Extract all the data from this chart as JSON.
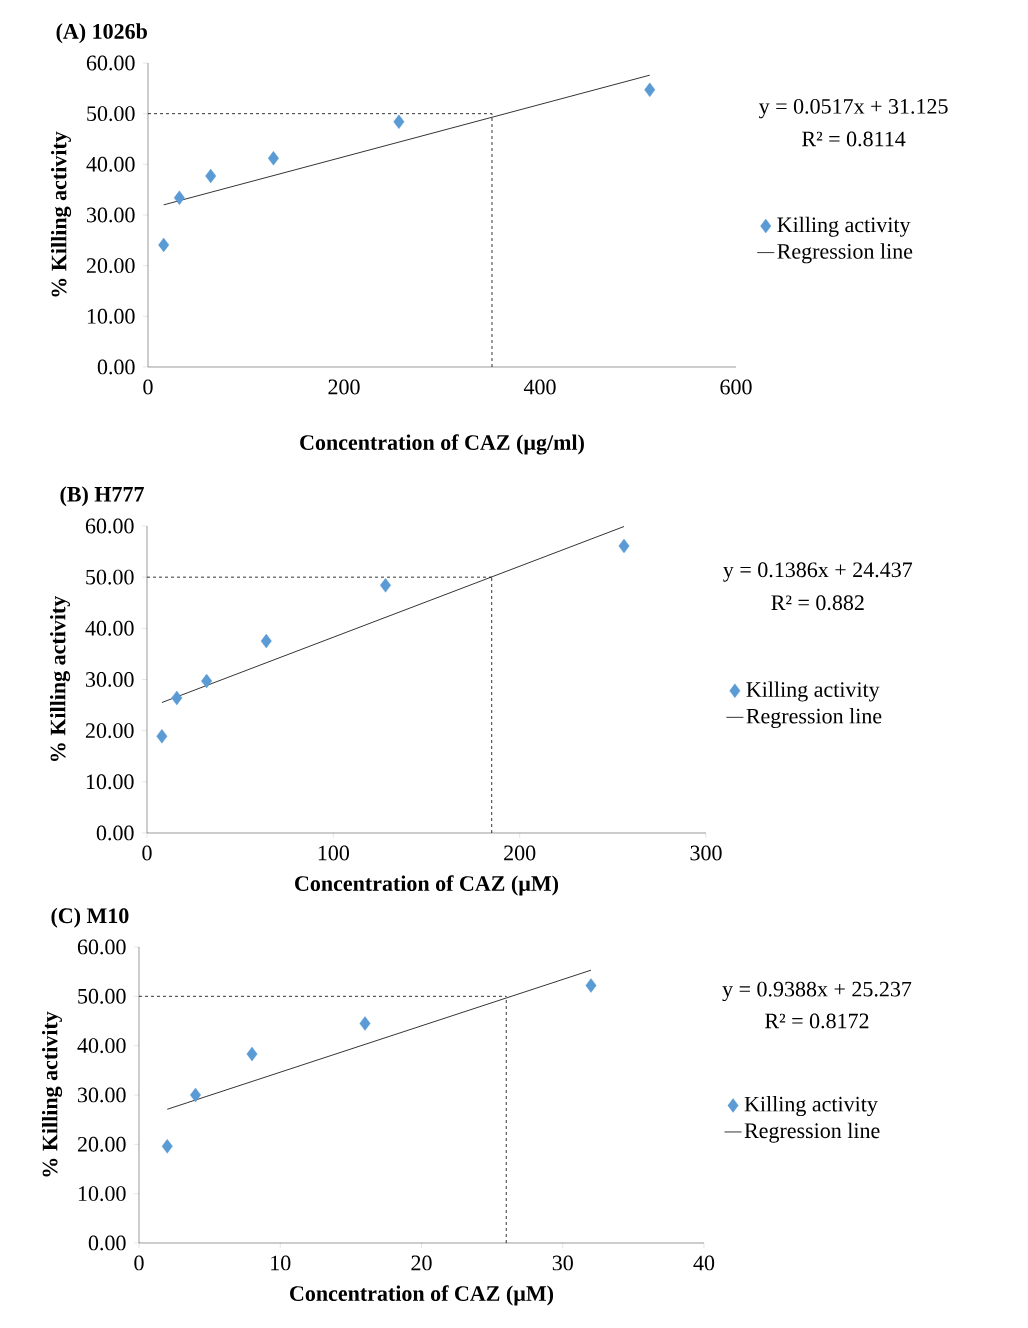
{
  "chart_data": [
    {
      "type": "scatter",
      "title": "(A) 1026b",
      "xlabel": "Concentration of  CAZ (µg/ml)",
      "ylabel": "% Killing activity",
      "xlim": [
        0,
        600
      ],
      "xticks": [
        0,
        200,
        400,
        600
      ],
      "ylim": [
        0,
        60
      ],
      "yticks": [
        {
          "value": 0,
          "label": "0.00"
        },
        {
          "value": 10,
          "label": "10.00"
        },
        {
          "value": 20,
          "label": "20.00"
        },
        {
          "value": 30,
          "label": "30.00"
        },
        {
          "value": 40,
          "label": "40.00"
        },
        {
          "value": 50,
          "label": "50.00"
        },
        {
          "value": 60,
          "label": "60.00"
        }
      ],
      "legend": "right",
      "grid": false,
      "series": [
        {
          "name": "Killing activity",
          "marker": "diamond",
          "color": "#5b9bd5",
          "x": [
            16,
            32,
            64,
            128,
            256,
            512
          ],
          "values": [
            24.1,
            33.4,
            37.7,
            41.2,
            48.4,
            54.7
          ]
        },
        {
          "name": "Regression line",
          "type": "line",
          "marker": "none",
          "color": "#000000",
          "line_style": "solid",
          "x": [
            16,
            512
          ],
          "values": [
            32.0,
            57.6
          ]
        }
      ],
      "ref_lines": [
        {
          "axis": "y",
          "value": 50,
          "color": "#000000",
          "line_style": "dashed"
        },
        {
          "axis": "x",
          "value": 351,
          "color": "#000000",
          "line_style": "dashed"
        }
      ],
      "annotations": [
        "y = 0.0517x + 31.125",
        "R² = 0.8114"
      ]
    },
    {
      "type": "scatter",
      "title": "(B) H777",
      "xlabel": "Concentration of CAZ (µM)",
      "ylabel": "% Killing activity",
      "xlim": [
        0,
        300
      ],
      "xticks": [
        0,
        100,
        200,
        300
      ],
      "ylim": [
        0,
        60
      ],
      "yticks": [
        {
          "value": 0,
          "label": "0.00"
        },
        {
          "value": 10,
          "label": "10.00"
        },
        {
          "value": 20,
          "label": "20.00"
        },
        {
          "value": 30,
          "label": "30.00"
        },
        {
          "value": 40,
          "label": "40.00"
        },
        {
          "value": 50,
          "label": "50.00"
        },
        {
          "value": 60,
          "label": "60.00"
        }
      ],
      "legend": "right",
      "grid": false,
      "series": [
        {
          "name": "Killing activity",
          "marker": "diamond",
          "color": "#5b9bd5",
          "x": [
            8,
            16,
            32,
            64,
            128,
            256
          ],
          "values": [
            18.9,
            26.4,
            29.7,
            37.5,
            48.4,
            56.1
          ]
        },
        {
          "name": "Regression line",
          "type": "line",
          "marker": "none",
          "color": "#000000",
          "line_style": "solid",
          "x": [
            8,
            256
          ],
          "values": [
            25.5,
            59.9
          ]
        }
      ],
      "ref_lines": [
        {
          "axis": "y",
          "value": 50,
          "color": "#000000",
          "line_style": "dashed"
        },
        {
          "axis": "x",
          "value": 185,
          "color": "#000000",
          "line_style": "dashed"
        }
      ],
      "annotations": [
        "y = 0.1386x + 24.437",
        "R² = 0.882"
      ]
    },
    {
      "type": "scatter",
      "title": "(C) M10",
      "xlabel": "Concentration of CAZ (µM)",
      "ylabel": "% Killing activity",
      "xlim": [
        0,
        40
      ],
      "xticks": [
        0,
        10,
        20,
        30,
        40
      ],
      "ylim": [
        0,
        60
      ],
      "yticks": [
        {
          "value": 0,
          "label": "0.00"
        },
        {
          "value": 10,
          "label": "10.00"
        },
        {
          "value": 20,
          "label": "20.00"
        },
        {
          "value": 30,
          "label": "30.00"
        },
        {
          "value": 40,
          "label": "40.00"
        },
        {
          "value": 50,
          "label": "50.00"
        },
        {
          "value": 60,
          "label": "60.00"
        }
      ],
      "legend": "right",
      "grid": false,
      "series": [
        {
          "name": "Killing activity",
          "marker": "diamond",
          "color": "#5b9bd5",
          "x": [
            2,
            4,
            8,
            16,
            32
          ],
          "values": [
            19.6,
            30.0,
            38.3,
            44.5,
            52.2
          ]
        },
        {
          "name": "Regression line",
          "type": "line",
          "marker": "none",
          "color": "#000000",
          "line_style": "solid",
          "x": [
            2,
            32
          ],
          "values": [
            27.1,
            55.3
          ]
        }
      ],
      "ref_lines": [
        {
          "axis": "y",
          "value": 50,
          "color": "#000000",
          "line_style": "dashed"
        },
        {
          "axis": "x",
          "value": 26,
          "color": "#000000",
          "line_style": "dashed"
        }
      ],
      "annotations": [
        "y = 0.9388x + 25.237",
        "R² = 0.8172"
      ]
    }
  ]
}
